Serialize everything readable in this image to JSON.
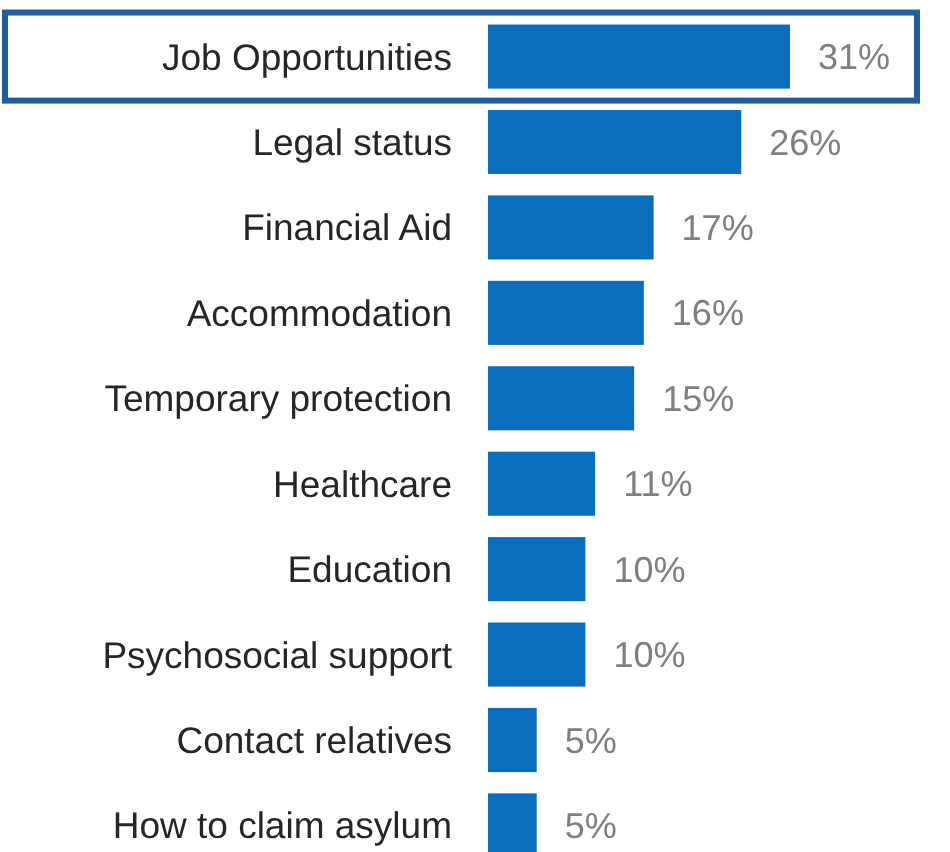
{
  "chart_data": {
    "type": "bar",
    "orientation": "horizontal",
    "categories": [
      "Job Opportunities",
      "Legal status",
      "Financial Aid",
      "Accommodation",
      "Temporary protection",
      "Healthcare",
      "Education",
      "Psychosocial support",
      "Contact relatives",
      "How to claim asylum"
    ],
    "values": [
      31,
      26,
      17,
      16,
      15,
      11,
      10,
      10,
      5,
      5
    ],
    "value_labels": [
      "31%",
      "26%",
      "17%",
      "16%",
      "15%",
      "11%",
      "10%",
      "10%",
      "5%",
      "5%"
    ],
    "color": "#0a6ebd"
  }
}
